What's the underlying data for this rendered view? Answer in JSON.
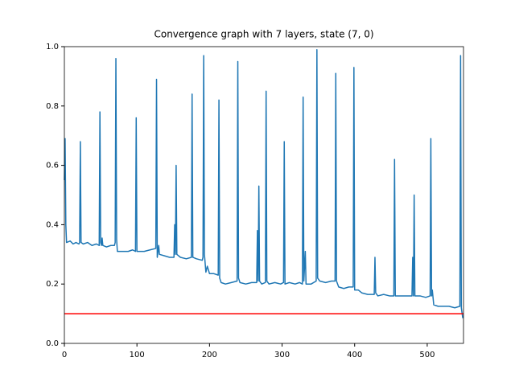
{
  "chart_data": {
    "type": "line",
    "title": "Convergence graph with 7 layers, state (7, 0)",
    "x": [
      0,
      1,
      2,
      3,
      8,
      12,
      16,
      20,
      21,
      22,
      23,
      26,
      32,
      38,
      44,
      48,
      49,
      50,
      51,
      52,
      53,
      58,
      64,
      69,
      70,
      71,
      72,
      73,
      80,
      88,
      94,
      98,
      99,
      100,
      104,
      110,
      118,
      126,
      127,
      128,
      130,
      131,
      138,
      145,
      151,
      152,
      153,
      154,
      155,
      160,
      168,
      175,
      176,
      177,
      182,
      190,
      191,
      192,
      193,
      195,
      197,
      200,
      206,
      212,
      213,
      214,
      216,
      222,
      230,
      238,
      239,
      240,
      242,
      250,
      258,
      265,
      266,
      267,
      268,
      269,
      272,
      277,
      278,
      279,
      282,
      290,
      298,
      302,
      303,
      304,
      310,
      318,
      324,
      328,
      329,
      330,
      332,
      333,
      340,
      347,
      348,
      349,
      352,
      360,
      368,
      373,
      374,
      375,
      378,
      385,
      392,
      398,
      399,
      400,
      405,
      410,
      418,
      427,
      428,
      429,
      432,
      440,
      448,
      454,
      455,
      456,
      462,
      470,
      479,
      480,
      481,
      482,
      483,
      490,
      498,
      504,
      505,
      506,
      507,
      509,
      515,
      522,
      530,
      538,
      545,
      546,
      547,
      549
    ],
    "series": [
      {
        "color": "#1f77b4",
        "values": [
          0.55,
          0.69,
          0.4,
          0.34,
          0.345,
          0.335,
          0.34,
          0.335,
          0.34,
          0.68,
          0.34,
          0.335,
          0.34,
          0.33,
          0.335,
          0.33,
          0.78,
          0.34,
          0.33,
          0.355,
          0.33,
          0.325,
          0.33,
          0.33,
          0.34,
          0.96,
          0.35,
          0.31,
          0.31,
          0.31,
          0.315,
          0.31,
          0.76,
          0.31,
          0.31,
          0.31,
          0.315,
          0.32,
          0.89,
          0.29,
          0.33,
          0.3,
          0.295,
          0.29,
          0.29,
          0.4,
          0.3,
          0.6,
          0.3,
          0.29,
          0.285,
          0.29,
          0.84,
          0.29,
          0.285,
          0.28,
          0.29,
          0.97,
          0.3,
          0.24,
          0.26,
          0.235,
          0.235,
          0.23,
          0.82,
          0.22,
          0.205,
          0.2,
          0.205,
          0.21,
          0.95,
          0.22,
          0.205,
          0.2,
          0.205,
          0.205,
          0.38,
          0.21,
          0.53,
          0.21,
          0.2,
          0.205,
          0.85,
          0.21,
          0.2,
          0.205,
          0.2,
          0.205,
          0.68,
          0.2,
          0.205,
          0.2,
          0.205,
          0.2,
          0.83,
          0.21,
          0.31,
          0.2,
          0.2,
          0.21,
          0.99,
          0.22,
          0.21,
          0.205,
          0.21,
          0.21,
          0.91,
          0.21,
          0.19,
          0.185,
          0.19,
          0.19,
          0.93,
          0.18,
          0.18,
          0.17,
          0.165,
          0.165,
          0.29,
          0.17,
          0.16,
          0.165,
          0.16,
          0.16,
          0.62,
          0.16,
          0.16,
          0.16,
          0.16,
          0.29,
          0.16,
          0.5,
          0.16,
          0.16,
          0.155,
          0.16,
          0.69,
          0.16,
          0.18,
          0.13,
          0.125,
          0.125,
          0.125,
          0.12,
          0.125,
          0.97,
          0.12,
          0.085
        ]
      }
    ],
    "hline": {
      "value": 0.1,
      "color": "#ff0000"
    },
    "xlim": [
      0,
      550
    ],
    "xticks": [
      0,
      100,
      200,
      300,
      400,
      500
    ],
    "ylim": [
      0,
      1
    ],
    "yticks": [
      {
        "value": 0,
        "label": "0.0"
      },
      0.2,
      0.4,
      0.6,
      0.8,
      {
        "value": 1,
        "label": "1.0"
      }
    ]
  }
}
